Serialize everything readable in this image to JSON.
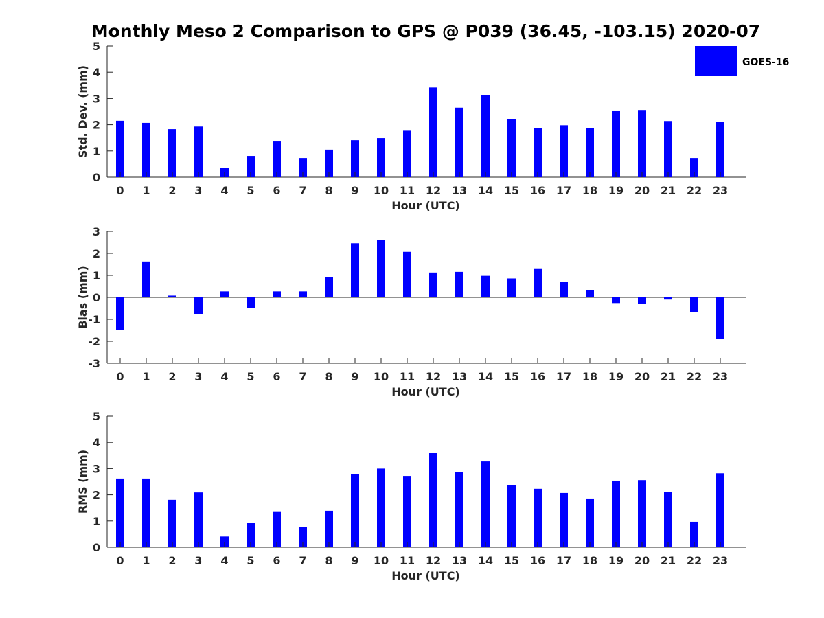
{
  "figure": {
    "title": "Monthly Meso 2 Comparison to GPS @ P039 (36.45, -103.15) 2020-07"
  },
  "colors": {
    "bar": "#0000ff",
    "axis": "#262626"
  },
  "chart_data": [
    {
      "type": "bar",
      "series_name": "GOES-16",
      "ylabel": "Std. Dev. (mm)",
      "xlabel": "Hour (UTC)",
      "ylim": [
        0,
        5
      ],
      "yticks": [
        0,
        1,
        2,
        3,
        4,
        5
      ],
      "categories": [
        "0",
        "1",
        "2",
        "3",
        "4",
        "5",
        "6",
        "7",
        "8",
        "9",
        "10",
        "11",
        "12",
        "13",
        "14",
        "15",
        "16",
        "17",
        "18",
        "19",
        "20",
        "21",
        "22",
        "23"
      ],
      "values": [
        2.15,
        2.07,
        1.83,
        1.93,
        0.35,
        0.81,
        1.36,
        0.73,
        1.05,
        1.41,
        1.49,
        1.77,
        3.42,
        2.65,
        3.14,
        2.22,
        1.86,
        1.98,
        1.86,
        2.54,
        2.56,
        2.14,
        0.73,
        2.12
      ]
    },
    {
      "type": "bar",
      "series_name": "GOES-16",
      "ylabel": "Bias (mm)",
      "xlabel": "Hour (UTC)",
      "ylim": [
        -3,
        3
      ],
      "yticks": [
        -3,
        -2,
        -1,
        0,
        1,
        2,
        3
      ],
      "zero_line": true,
      "categories": [
        "0",
        "1",
        "2",
        "3",
        "4",
        "5",
        "6",
        "7",
        "8",
        "9",
        "10",
        "11",
        "12",
        "13",
        "14",
        "15",
        "16",
        "17",
        "18",
        "19",
        "20",
        "21",
        "22",
        "23"
      ],
      "values": [
        -1.48,
        1.63,
        0.08,
        -0.77,
        0.27,
        -0.48,
        0.27,
        0.27,
        0.92,
        2.46,
        2.6,
        2.07,
        1.13,
        1.16,
        0.98,
        0.86,
        1.29,
        0.69,
        0.33,
        -0.26,
        -0.29,
        -0.1,
        -0.68,
        -1.88
      ]
    },
    {
      "type": "bar",
      "series_name": "GOES-16",
      "ylabel": "RMS (mm)",
      "xlabel": "Hour (UTC)",
      "ylim": [
        0,
        5
      ],
      "yticks": [
        0,
        1,
        2,
        3,
        4,
        5
      ],
      "categories": [
        "0",
        "1",
        "2",
        "3",
        "4",
        "5",
        "6",
        "7",
        "8",
        "9",
        "10",
        "11",
        "12",
        "13",
        "14",
        "15",
        "16",
        "17",
        "18",
        "19",
        "20",
        "21",
        "22",
        "23"
      ],
      "values": [
        2.62,
        2.62,
        1.81,
        2.09,
        0.41,
        0.94,
        1.37,
        0.77,
        1.39,
        2.8,
        3.0,
        2.72,
        3.61,
        2.87,
        3.27,
        2.38,
        2.23,
        2.07,
        1.86,
        2.54,
        2.56,
        2.12,
        0.97,
        2.82
      ]
    }
  ],
  "legend": {
    "label": "GOES-16"
  }
}
